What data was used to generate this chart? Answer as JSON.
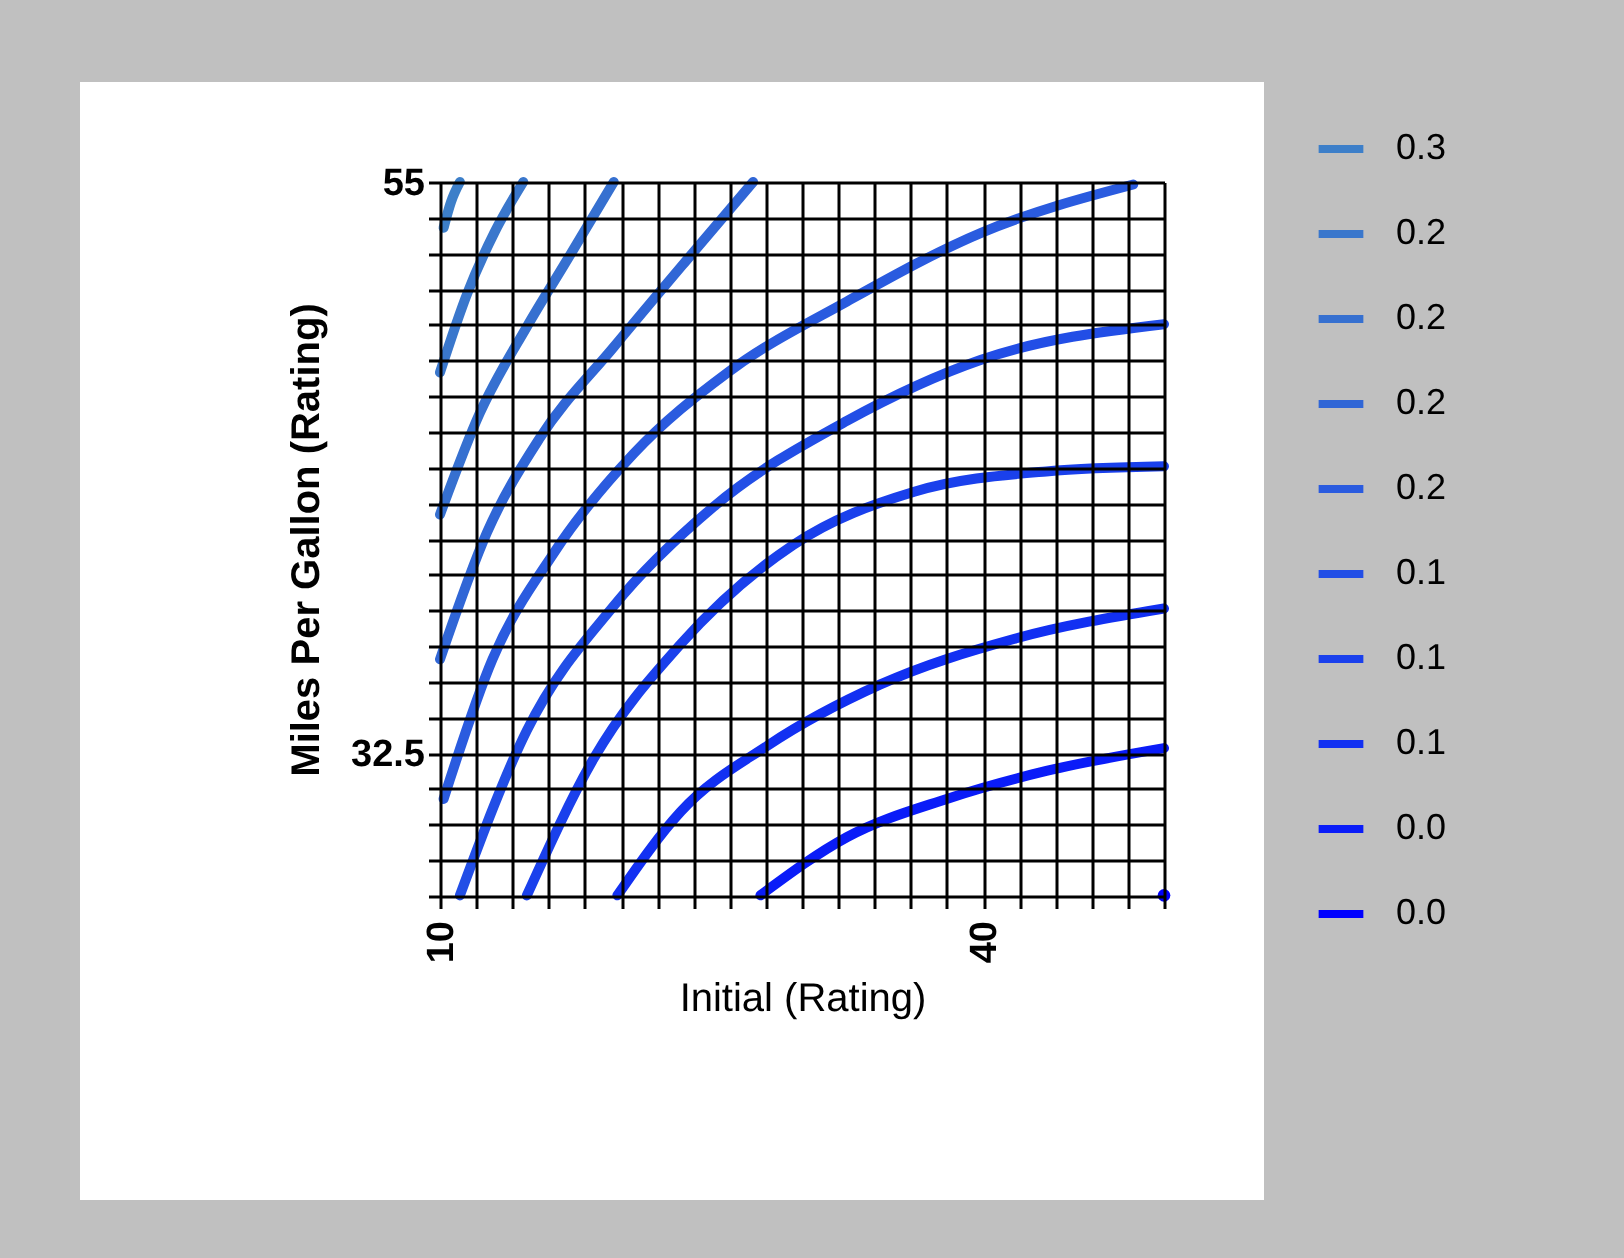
{
  "chart_data": {
    "type": "line",
    "xlabel": "Initial (Rating)",
    "ylabel": "Miles Per Gallon (Rating)",
    "xlim": [
      10,
      50
    ],
    "ylim": [
      26.875,
      55
    ],
    "xticks": [
      10,
      {
        "value": 12,
        "label": null
      },
      {
        "value": 14,
        "label": null
      },
      {
        "value": 16,
        "label": null
      },
      {
        "value": 18,
        "label": null
      },
      {
        "value": 20,
        "label": null
      },
      {
        "value": 22,
        "label": null
      },
      {
        "value": 24,
        "label": null
      },
      {
        "value": 26,
        "label": null
      },
      {
        "value": 28,
        "label": null
      },
      {
        "value": 30,
        "label": null
      },
      {
        "value": 32,
        "label": null
      },
      {
        "value": 34,
        "label": null
      },
      {
        "value": 36,
        "label": null
      },
      {
        "value": 38,
        "label": null
      },
      40,
      {
        "value": 42,
        "label": null
      },
      {
        "value": 44,
        "label": null
      },
      {
        "value": 46,
        "label": null
      },
      {
        "value": 48,
        "label": null
      },
      {
        "value": 50,
        "label": null
      }
    ],
    "yticks": [
      {
        "value": 26.875,
        "label": null
      },
      {
        "value": 28.28125,
        "label": null
      },
      {
        "value": 29.6875,
        "label": null
      },
      {
        "value": 31.09375,
        "label": null
      },
      32.5,
      {
        "value": 33.90625,
        "label": null
      },
      {
        "value": 35.3125,
        "label": null
      },
      {
        "value": 36.71875,
        "label": null
      },
      {
        "value": 38.125,
        "label": null
      },
      {
        "value": 39.53125,
        "label": null
      },
      {
        "value": 40.9375,
        "label": null
      },
      {
        "value": 42.34375,
        "label": null
      },
      {
        "value": 43.75,
        "label": null
      },
      {
        "value": 45.15625,
        "label": null
      },
      {
        "value": 46.5625,
        "label": null
      },
      {
        "value": 47.96875,
        "label": null
      },
      {
        "value": 49.375,
        "label": null
      },
      {
        "value": 50.78125,
        "label": null
      },
      {
        "value": 52.1875,
        "label": null
      },
      {
        "value": 53.59375,
        "label": null
      },
      55
    ],
    "grid": true,
    "legend": "right",
    "marker": "none",
    "line_style": "solid",
    "series": [
      {
        "name": "0.3",
        "color": "#3d7fc9",
        "x": [
          10.2,
          10.6,
          11.1
        ],
        "values": [
          53.2,
          54.2,
          55
        ]
      },
      {
        "name": "0.2",
        "color": "#3a77cc",
        "x": [
          10,
          11.5,
          13,
          14.6
        ],
        "values": [
          47.5,
          50.6,
          53,
          55
        ]
      },
      {
        "name": "0.2",
        "color": "#3670d0",
        "x": [
          10,
          12.2,
          14.8,
          17,
          19.6
        ],
        "values": [
          41.9,
          45.9,
          49.3,
          51.9,
          55
        ]
      },
      {
        "name": "0.2",
        "color": "#3066d6",
        "x": [
          10,
          12.6,
          15.5,
          19.6,
          23.6,
          27.3
        ],
        "values": [
          36.2,
          41.2,
          44.9,
          48.5,
          51.9,
          55
        ]
      },
      {
        "name": "0.2",
        "color": "#2a5bdf",
        "x": [
          10.2,
          12.9,
          16.3,
          20.7,
          25.9,
          32.5,
          39.9,
          48.3
        ],
        "values": [
          30.7,
          36.2,
          40.4,
          44.3,
          47.5,
          50.3,
          53,
          54.9
        ]
      },
      {
        "name": "0.1",
        "color": "#224ee6",
        "x": [
          11.1,
          14.8,
          19.6,
          25.1,
          32.5,
          39.9,
          50
        ],
        "values": [
          26.9,
          33.4,
          38.3,
          42.2,
          45.6,
          48,
          49.4
        ]
      },
      {
        "name": "0.1",
        "color": "#1a40ec",
        "x": [
          14.8,
          18.5,
          23.3,
          29.5,
          36.2,
          43.5,
          50
        ],
        "values": [
          26.9,
          32.3,
          36.8,
          40.7,
          42.8,
          43.6,
          43.8
        ]
      },
      {
        "name": "0.1",
        "color": "#1230f2",
        "x": [
          19.8,
          23.3,
          28.1,
          34.3,
          41.7,
          50
        ],
        "values": [
          26.9,
          30.2,
          32.8,
          35.2,
          37,
          38.2
        ]
      },
      {
        "name": "0.0",
        "color": "#0a1cf8",
        "x": [
          27.7,
          32.5,
          38,
          43.5,
          50
        ],
        "values": [
          26.9,
          29.2,
          30.7,
          31.8,
          32.7
        ]
      },
      {
        "name": "0.0",
        "color": "#0000ff",
        "x": [
          50
        ],
        "values": [
          26.9
        ],
        "marker": "circle"
      }
    ]
  }
}
